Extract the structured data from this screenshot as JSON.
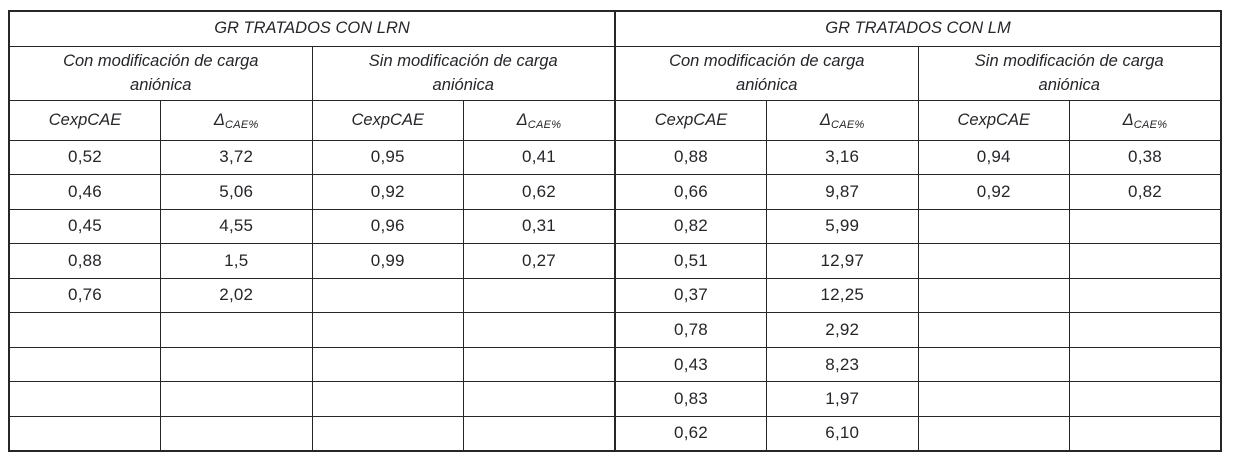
{
  "table": {
    "groups": [
      {
        "title": "GR TRATADOS CON LRN",
        "subgroups": [
          {
            "label": "Con modificación de carga aniónica"
          },
          {
            "label": "Sin modificación de carga aniónica"
          }
        ]
      },
      {
        "title": "GR TRATADOS CON LM",
        "subgroups": [
          {
            "label": "Con modificación de carga aniónica"
          },
          {
            "label": "Sin modificación de carga aniónica"
          }
        ]
      }
    ],
    "col_headers": {
      "cexp": "CexpCAE",
      "delta_symbol": "Δ",
      "delta_subscript": "CAE%"
    },
    "rows": [
      [
        "0,52",
        "3,72",
        "0,95",
        "0,41",
        "0,88",
        "3,16",
        "0,94",
        "0,38"
      ],
      [
        "0,46",
        "5,06",
        "0,92",
        "0,62",
        "0,66",
        "9,87",
        "0,92",
        "0,82"
      ],
      [
        "0,45",
        "4,55",
        "0,96",
        "0,31",
        "0,82",
        "5,99",
        "",
        ""
      ],
      [
        "0,88",
        "1,5",
        "0,99",
        "0,27",
        "0,51",
        "12,97",
        "",
        ""
      ],
      [
        "0,76",
        "2,02",
        "",
        "",
        "0,37",
        "12,25",
        "",
        ""
      ],
      [
        "",
        "",
        "",
        "",
        "0,78",
        "2,92",
        "",
        ""
      ],
      [
        "",
        "",
        "",
        "",
        "0,43",
        "8,23",
        "",
        ""
      ],
      [
        "",
        "",
        "",
        "",
        "0,83",
        "1,97",
        "",
        ""
      ],
      [
        "",
        "",
        "",
        "",
        "0,62",
        "6,10",
        "",
        ""
      ]
    ]
  },
  "colors": {
    "border": "#262626",
    "text": "#26262a",
    "background": "#ffffff"
  }
}
